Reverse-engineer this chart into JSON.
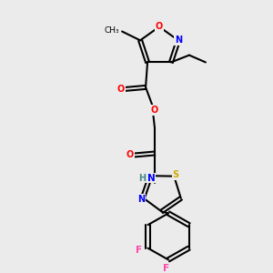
{
  "bg_color": "#ebebeb",
  "bond_color": "#000000",
  "atom_colors": {
    "O": "#ff0000",
    "N": "#0000ff",
    "S": "#ccaa00",
    "F": "#ff44aa",
    "H": "#448888",
    "C": "#000000"
  },
  "figsize": [
    3.0,
    3.0
  ],
  "dpi": 100
}
